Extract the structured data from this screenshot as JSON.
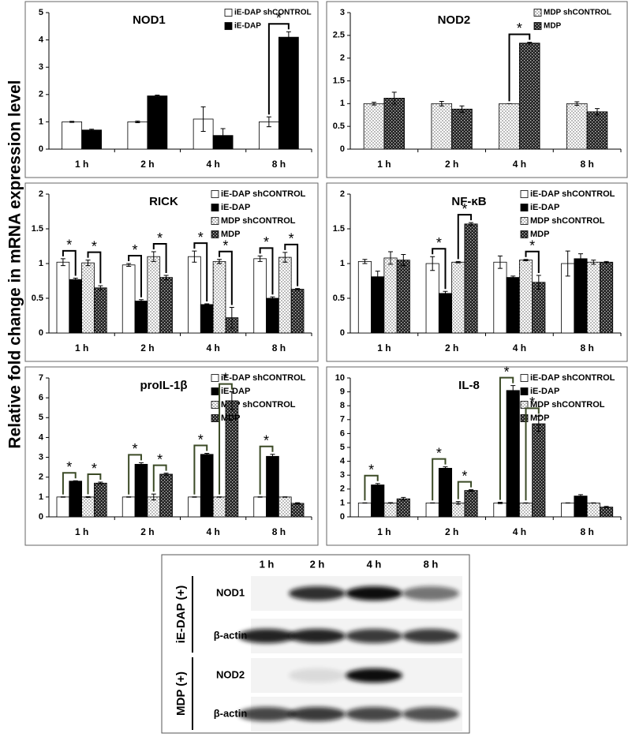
{
  "ylabel": "Relative fold change in mRNA expression level",
  "chart_data": [
    {
      "type": "bar",
      "title": "NOD1",
      "categories": [
        "1 h",
        "2 h",
        "4 h",
        "8 h"
      ],
      "ylim": [
        0,
        5
      ],
      "yticks": [
        0,
        1,
        2,
        3,
        4,
        5
      ],
      "series": [
        {
          "name": "iE-DAP shCONTROL",
          "color": "#ffffff",
          "pattern": "none",
          "values": [
            1.0,
            1.0,
            1.1,
            1.0
          ],
          "errors": [
            0.02,
            0.03,
            0.45,
            0.18
          ]
        },
        {
          "name": "iE-DAP",
          "color": "#000000",
          "pattern": "none",
          "values": [
            0.7,
            1.95,
            0.5,
            4.1
          ],
          "errors": [
            0.03,
            0.03,
            0.25,
            0.2
          ]
        }
      ],
      "annotations": [
        "*"
      ]
    },
    {
      "type": "bar",
      "title": "NOD2",
      "categories": [
        "1 h",
        "2 h",
        "4 h",
        "8 h"
      ],
      "ylim": [
        0,
        3
      ],
      "yticks": [
        0,
        0.5,
        1,
        1.5,
        2,
        2.5,
        3
      ],
      "series": [
        {
          "name": "MDP shCONTROL",
          "color": "#ffffff",
          "pattern": "dots",
          "values": [
            1.0,
            1.0,
            1.0,
            1.0
          ],
          "errors": [
            0.03,
            0.05,
            0,
            0.04
          ]
        },
        {
          "name": "MDP",
          "color": "#333333",
          "pattern": "checks",
          "values": [
            1.12,
            0.88,
            2.33,
            0.82
          ],
          "errors": [
            0.13,
            0.07,
            0.02,
            0.07
          ]
        }
      ],
      "annotations": [
        "*"
      ]
    },
    {
      "type": "bar",
      "title": "RICK",
      "categories": [
        "1 h",
        "2 h",
        "4 h",
        "8 h"
      ],
      "ylim": [
        0,
        2
      ],
      "yticks": [
        0,
        0.5,
        1,
        1.5,
        2
      ],
      "series": [
        {
          "name": "iE-DAP shCONTROL",
          "color": "#ffffff",
          "pattern": "none",
          "values": [
            1.02,
            0.98,
            1.1,
            1.07
          ],
          "errors": [
            0.05,
            0.02,
            0.08,
            0.04
          ]
        },
        {
          "name": "iE-DAP",
          "color": "#000000",
          "pattern": "none",
          "values": [
            0.77,
            0.46,
            0.41,
            0.5
          ],
          "errors": [
            0.02,
            0.02,
            0.01,
            0.02
          ]
        },
        {
          "name": "MDP shCONTROL",
          "color": "#ffffff",
          "pattern": "dots",
          "values": [
            1.01,
            1.1,
            1.03,
            1.09
          ],
          "errors": [
            0.04,
            0.07,
            0.03,
            0.07
          ]
        },
        {
          "name": "MDP",
          "color": "#333333",
          "pattern": "checks",
          "values": [
            0.65,
            0.8,
            0.22,
            0.63
          ],
          "errors": [
            0.03,
            0.03,
            0.15,
            0.01
          ]
        }
      ],
      "annotations": [
        "*",
        "*",
        "*",
        "*",
        "*",
        "*",
        "*",
        "*"
      ]
    },
    {
      "type": "bar",
      "title": "NF-κB",
      "categories": [
        "1 h",
        "2 h",
        "4 h",
        "8 h"
      ],
      "ylim": [
        0,
        2
      ],
      "yticks": [
        0,
        0.5,
        1,
        1.5,
        2
      ],
      "series": [
        {
          "name": "iE-DAP shCONTROL",
          "color": "#ffffff",
          "pattern": "none",
          "values": [
            1.03,
            1.0,
            1.02,
            1.0
          ],
          "errors": [
            0.03,
            0.1,
            0.09,
            0.18
          ]
        },
        {
          "name": "iE-DAP",
          "color": "#000000",
          "pattern": "none",
          "values": [
            0.81,
            0.57,
            0.8,
            1.07
          ],
          "errors": [
            0.08,
            0.03,
            0.02,
            0.07
          ]
        },
        {
          "name": "MDP shCONTROL",
          "color": "#ffffff",
          "pattern": "dots",
          "values": [
            1.08,
            1.02,
            1.05,
            1.02
          ],
          "errors": [
            0.09,
            0.01,
            0.01,
            0.03
          ]
        },
        {
          "name": "MDP",
          "color": "#333333",
          "pattern": "checks",
          "values": [
            1.05,
            1.57,
            0.73,
            1.02
          ],
          "errors": [
            0.08,
            0.02,
            0.1,
            0.01
          ]
        }
      ],
      "annotations": [
        "*",
        "*",
        "*"
      ]
    },
    {
      "type": "bar",
      "title": "proIL-1β",
      "categories": [
        "1 h",
        "2 h",
        "4 h",
        "8 h"
      ],
      "ylim": [
        0,
        7
      ],
      "yticks": [
        0,
        1,
        2,
        3,
        4,
        5,
        6,
        7
      ],
      "series": [
        {
          "name": "iE-DAP shCONTROL",
          "color": "#ffffff",
          "pattern": "none",
          "values": [
            1.0,
            1.0,
            1.0,
            1.0
          ],
          "errors": [
            0.01,
            0.01,
            0.01,
            0.01
          ]
        },
        {
          "name": "iE-DAP",
          "color": "#000000",
          "pattern": "none",
          "values": [
            1.8,
            2.65,
            3.15,
            3.05
          ],
          "errors": [
            0.02,
            0.08,
            0.05,
            0.1
          ]
        },
        {
          "name": "MDP shCONTROL",
          "color": "#ffffff",
          "pattern": "dots",
          "values": [
            1.0,
            1.0,
            1.0,
            1.0
          ],
          "errors": [
            0.02,
            0.15,
            0.01,
            0.01
          ]
        },
        {
          "name": "MDP",
          "color": "#333333",
          "pattern": "checks",
          "values": [
            1.7,
            2.15,
            5.85,
            0.68
          ],
          "errors": [
            0.05,
            0.05,
            0.45,
            0.03
          ]
        }
      ],
      "annotations": [
        "*",
        "*",
        "*",
        "*",
        "*",
        "*",
        "*"
      ]
    },
    {
      "type": "bar",
      "title": "IL-8",
      "categories": [
        "1 h",
        "2 h",
        "4 h",
        "8 h"
      ],
      "ylim": [
        0,
        10
      ],
      "yticks": [
        0,
        1,
        2,
        3,
        4,
        5,
        6,
        7,
        8,
        9,
        10
      ],
      "series": [
        {
          "name": "iE-DAP shCONTROL",
          "color": "#ffffff",
          "pattern": "none",
          "values": [
            1.0,
            1.0,
            1.0,
            1.0
          ],
          "errors": [
            0.01,
            0.01,
            0.05,
            0.01
          ]
        },
        {
          "name": "iE-DAP",
          "color": "#000000",
          "pattern": "none",
          "values": [
            2.3,
            3.5,
            9.1,
            1.5
          ],
          "errors": [
            0.1,
            0.1,
            0.35,
            0.1
          ]
        },
        {
          "name": "MDP shCONTROL",
          "color": "#ffffff",
          "pattern": "dots",
          "values": [
            1.0,
            1.0,
            1.0,
            1.0
          ],
          "errors": [
            0.02,
            0.1,
            0.01,
            0.01
          ]
        },
        {
          "name": "MDP",
          "color": "#333333",
          "pattern": "checks",
          "values": [
            1.3,
            1.9,
            6.7,
            0.7
          ],
          "errors": [
            0.1,
            0.05,
            0.55,
            0.05
          ]
        }
      ],
      "annotations": [
        "*",
        "*",
        "*",
        "*",
        "*"
      ]
    }
  ],
  "blot": {
    "lanes": [
      "1 h",
      "2 h",
      "4 h",
      "8 h"
    ],
    "groups": [
      {
        "label": "iE-DAP (+)",
        "rows": [
          "NOD1",
          "β-actin"
        ]
      },
      {
        "label": "MDP (+)",
        "rows": [
          "NOD2",
          "β-actin"
        ]
      }
    ]
  }
}
